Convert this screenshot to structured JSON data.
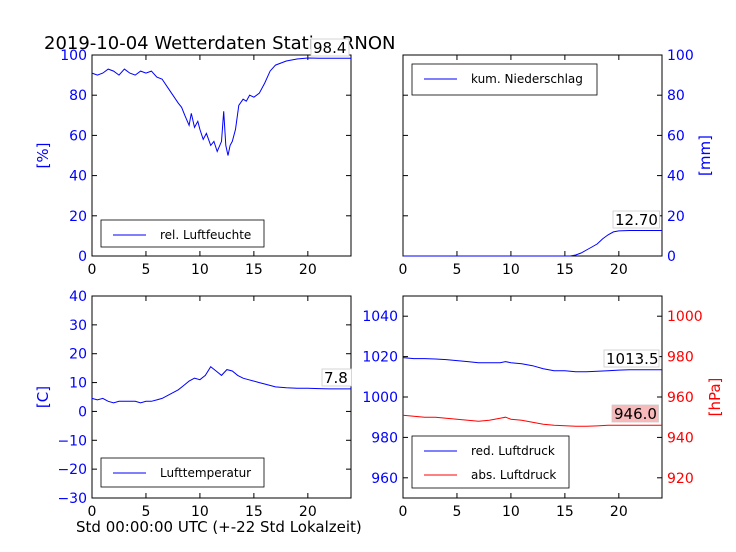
{
  "title": "2019-10-04 Wetterdaten Station RNON",
  "xlabel": "Std 00:00:00 UTC (+-22 Std Lokalzeit)",
  "colors": {
    "blue": "#0000ff",
    "red": "#ff0000",
    "axis": "#000000"
  },
  "chart_data": [
    {
      "type": "line",
      "panel": "top-left",
      "ylabel": "[%]",
      "xlim": [
        0,
        24
      ],
      "ylim": [
        0,
        100
      ],
      "xticks": [
        "0",
        "5",
        "10",
        "15",
        "20"
      ],
      "yticks": [
        "0",
        "20",
        "40",
        "60",
        "80",
        "100"
      ],
      "legend": {
        "placement": "bottom-left"
      },
      "series": [
        {
          "name": "rel. Luftfeuchte",
          "color": "#0000ff",
          "x": [
            0,
            0.5,
            1,
            1.5,
            2,
            2.5,
            3,
            3.5,
            4,
            4.5,
            5,
            5.5,
            6,
            6.5,
            7,
            7.5,
            8,
            8.3,
            8.6,
            9,
            9.2,
            9.5,
            9.8,
            10,
            10.3,
            10.6,
            11,
            11.3,
            11.6,
            12,
            12.2,
            12.4,
            12.6,
            12.8,
            13,
            13.3,
            13.6,
            14,
            14.3,
            14.6,
            15,
            15.5,
            16,
            16.5,
            17,
            18,
            19,
            20,
            21,
            22,
            23,
            24
          ],
          "y": [
            91,
            90,
            91,
            93,
            92,
            90,
            93,
            91,
            90,
            92,
            91,
            92,
            89,
            88,
            84,
            80,
            76,
            74,
            70,
            65,
            71,
            64,
            67,
            63,
            58,
            61,
            55,
            57,
            52,
            57,
            72,
            55,
            50,
            55,
            57,
            63,
            75,
            78,
            77,
            80,
            79,
            81,
            86,
            92,
            95,
            97,
            98,
            98.5,
            98.4,
            98.4,
            98.4,
            98.4
          ]
        }
      ],
      "annotation": "98.4"
    },
    {
      "type": "area",
      "panel": "top-right",
      "ylabel": "[mm]",
      "xlim": [
        0,
        24
      ],
      "ylim": [
        0,
        100
      ],
      "xticks": [
        "0",
        "5",
        "10",
        "15",
        "20"
      ],
      "yticks": [
        "0",
        "20",
        "40",
        "60",
        "80",
        "100"
      ],
      "legend": {
        "placement": "top-left"
      },
      "series": [
        {
          "name": "kum. Niederschlag",
          "color": "#0000ff",
          "x": [
            0,
            15.5,
            16,
            16.5,
            17,
            17.5,
            18,
            18.5,
            19,
            19.5,
            20,
            21,
            22,
            23,
            24
          ],
          "y": [
            0,
            0,
            0.5,
            1.5,
            3,
            4.5,
            6,
            8.5,
            10.5,
            12,
            12.5,
            12.7,
            12.7,
            12.7,
            12.7
          ]
        }
      ],
      "annotation": "12.70"
    },
    {
      "type": "line",
      "panel": "bottom-left",
      "ylabel": "[C]",
      "xlim": [
        0,
        24
      ],
      "ylim": [
        -30,
        40
      ],
      "xticks": [
        "0",
        "5",
        "10",
        "15",
        "20"
      ],
      "yticks": [
        "−30",
        "−20",
        "−10",
        "0",
        "10",
        "20",
        "30",
        "40"
      ],
      "legend": {
        "placement": "bottom-left"
      },
      "series": [
        {
          "name": "Lufttemperatur",
          "color": "#0000ff",
          "x": [
            0,
            0.5,
            1,
            1.5,
            2,
            2.5,
            3,
            3.5,
            4,
            4.5,
            5,
            5.5,
            6,
            6.5,
            7,
            7.5,
            8,
            8.5,
            9,
            9.5,
            10,
            10.5,
            11,
            11.5,
            12,
            12.5,
            13,
            13.5,
            14,
            14.5,
            15,
            15.5,
            16,
            17,
            18,
            19,
            20,
            21,
            22,
            23,
            24
          ],
          "y": [
            4.5,
            4,
            4.5,
            3.5,
            3,
            3.5,
            3.5,
            3.5,
            3.5,
            3,
            3.5,
            3.5,
            4,
            4.5,
            5.5,
            6.5,
            7.5,
            9,
            10.5,
            11.5,
            11,
            12.5,
            15.5,
            14,
            12.5,
            14.5,
            14,
            12.5,
            11.5,
            11,
            10.5,
            10,
            9.5,
            8.5,
            8.2,
            8,
            8,
            7.9,
            7.8,
            7.8,
            7.8
          ]
        }
      ],
      "annotation": "7.8"
    },
    {
      "type": "line",
      "panel": "bottom-right",
      "ylabel_right": "[hPa]",
      "xlim": [
        0,
        24
      ],
      "ylim": [
        950,
        1050
      ],
      "ylim_right": [
        910,
        1010
      ],
      "xticks": [
        "0",
        "5",
        "10",
        "15",
        "20"
      ],
      "yticks": [
        "960",
        "980",
        "1000",
        "1020",
        "1040"
      ],
      "yticks_right": [
        "920",
        "940",
        "960",
        "980",
        "1000"
      ],
      "legend": {
        "placement": "bottom-left"
      },
      "series": [
        {
          "name": "red. Luftdruck",
          "color": "#0000ff",
          "axis": "left",
          "x": [
            0,
            1,
            2,
            3,
            4,
            5,
            6,
            7,
            8,
            9,
            9.5,
            10,
            11,
            12,
            13,
            14,
            15,
            16,
            17,
            18,
            19,
            20,
            21,
            22,
            23,
            24
          ],
          "y": [
            1019.5,
            1019,
            1019,
            1018.8,
            1018.5,
            1018,
            1017.5,
            1017,
            1017,
            1017,
            1017.5,
            1017,
            1016.5,
            1015.5,
            1014,
            1013,
            1013,
            1012.5,
            1012.5,
            1012.7,
            1013,
            1013.3,
            1013.5,
            1013.5,
            1013.5,
            1013.5
          ]
        },
        {
          "name": "abs. Luftdruck",
          "color": "#ff0000",
          "axis": "right",
          "x": [
            0,
            1,
            2,
            3,
            4,
            5,
            6,
            7,
            8,
            9,
            9.5,
            10,
            11,
            12,
            13,
            14,
            15,
            16,
            17,
            18,
            19,
            20,
            21,
            22,
            23,
            24
          ],
          "y": [
            951,
            950.5,
            950,
            950,
            949.5,
            949,
            948.5,
            948,
            948.5,
            949.5,
            950,
            949,
            948.5,
            947.5,
            946.5,
            946,
            945.8,
            945.5,
            945.5,
            945.7,
            946,
            946,
            946,
            946,
            946,
            946
          ]
        }
      ],
      "annotations": [
        "1013.5",
        "946.0"
      ]
    }
  ]
}
